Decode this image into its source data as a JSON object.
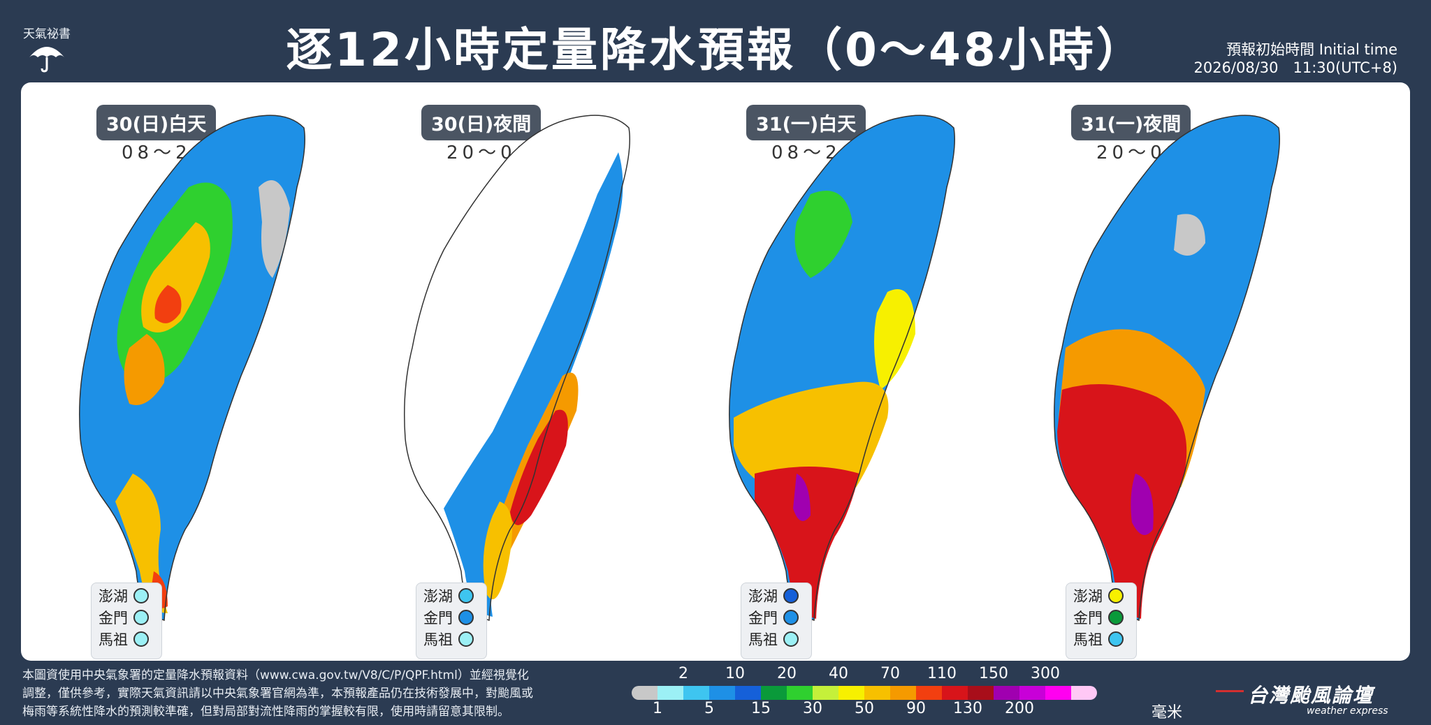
{
  "header": {
    "logo_text": "天氣祕書",
    "title": "逐12小時定量降水預報（0～48小時）",
    "init_label": "預報初始時間 Initial time",
    "init_value": "2026/08/30　11:30(UTC+8)"
  },
  "maps": [
    {
      "date": "30(日)白天",
      "range": "08～20時",
      "islands": [
        {
          "name": "澎湖",
          "color": "#9cf0f5"
        },
        {
          "name": "金門",
          "color": "#9cf0f5"
        },
        {
          "name": "馬祖",
          "color": "#9cf0f5"
        }
      ]
    },
    {
      "date": "30(日)夜間",
      "range": "20～08時",
      "islands": [
        {
          "name": "澎湖",
          "color": "#3ec5f0"
        },
        {
          "name": "金門",
          "color": "#1e90e6"
        },
        {
          "name": "馬祖",
          "color": "#9cf0f5"
        }
      ]
    },
    {
      "date": "31(一)白天",
      "range": "08～20時",
      "islands": [
        {
          "name": "澎湖",
          "color": "#1560d9"
        },
        {
          "name": "金門",
          "color": "#1e90e6"
        },
        {
          "name": "馬祖",
          "color": "#9cf0f5"
        }
      ]
    },
    {
      "date": "31(一)夜間",
      "range": "20～08時",
      "islands": [
        {
          "name": "澎湖",
          "color": "#f7f000"
        },
        {
          "name": "金門",
          "color": "#0a9a3a"
        },
        {
          "name": "馬祖",
          "color": "#3ec5f0"
        }
      ]
    }
  ],
  "footer": {
    "note_line1": "本圖資使用中央氣象署的定量降水預報資料（www.cwa.gov.tw/V8/C/P/QPF.html）並經視覺化",
    "note_line2": "調整，僅供參考，實際天氣資訊請以中央氣象署官網為準，本預報產品仍在技術發展中，對颱風或",
    "note_line3": "梅雨等系統性降水的預測較準確，但對局部對流性降雨的掌握較有限，使用時請留意其限制。"
  },
  "legend": {
    "top_labels": [
      "2",
      "10",
      "20",
      "40",
      "70",
      "110",
      "150",
      "300"
    ],
    "bottom_labels": [
      "1",
      "5",
      "15",
      "30",
      "50",
      "90",
      "130",
      "200"
    ],
    "unit": "毫米",
    "colors": [
      "#c8c8c8",
      "#9cf0f5",
      "#3ec5f0",
      "#1e90e6",
      "#1560d9",
      "#0a9a3a",
      "#2fd02f",
      "#c5f03a",
      "#f7f000",
      "#f7c000",
      "#f59a00",
      "#f23f10",
      "#d8141a",
      "#a80e1a",
      "#a000b0",
      "#c800d8",
      "#ff00f0",
      "#ffc8f5"
    ]
  },
  "brand": {
    "name": "台灣颱風論壇",
    "sub": "weather express"
  }
}
